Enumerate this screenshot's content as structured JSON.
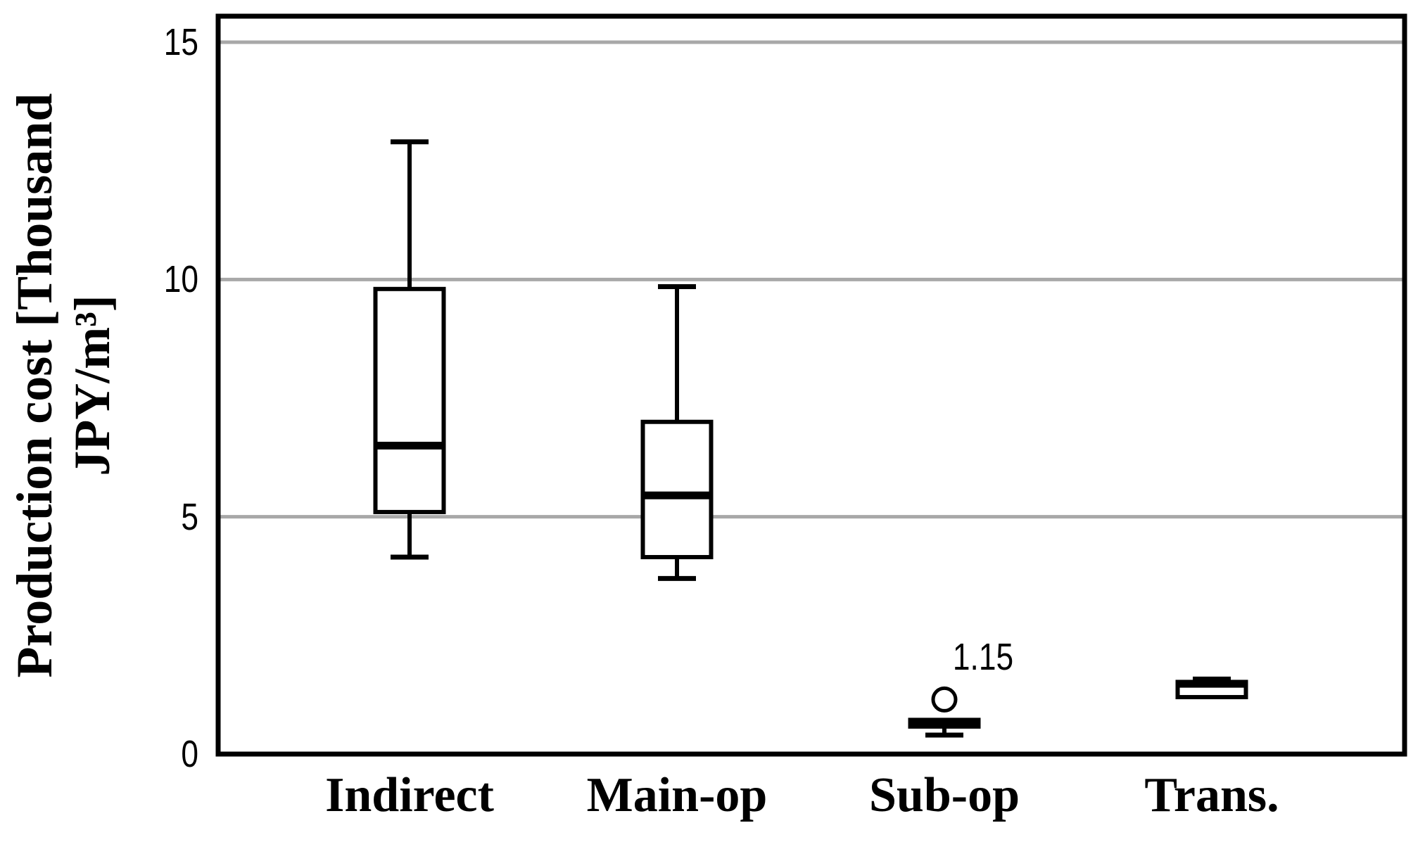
{
  "chart_data": {
    "type": "box",
    "title": "",
    "xlabel": "",
    "ylabel": "Production cost [Thousand JPY/m³]",
    "ylabel_lines": [
      "Production cost [Thousand",
      "JPY/m³]"
    ],
    "categories": [
      "Indirect",
      "Main-op",
      "Sub-op",
      "Trans."
    ],
    "yticks": [
      0,
      5,
      10,
      15
    ],
    "ylim": [
      0,
      15.55
    ],
    "grid": {
      "horizontal_gridlines_at": [
        5,
        10,
        15
      ]
    },
    "legend": "none",
    "series": [
      {
        "category": "Indirect",
        "whisker_low": 4.15,
        "q1": 5.1,
        "median": 6.5,
        "q3": 9.8,
        "whisker_high": 12.9,
        "outliers": []
      },
      {
        "category": "Main-op",
        "whisker_low": 3.7,
        "q1": 4.15,
        "median": 5.45,
        "q3": 7.0,
        "whisker_high": 9.85,
        "outliers": []
      },
      {
        "category": "Sub-op",
        "whisker_low": 0.4,
        "q1": 0.58,
        "median": 0.65,
        "q3": 0.72,
        "whisker_high": 0.72,
        "outliers": [
          {
            "value": 1.15,
            "label": "1.15"
          }
        ]
      },
      {
        "category": "Trans.",
        "whisker_low": 1.2,
        "q1": 1.2,
        "median": 1.48,
        "q3": 1.52,
        "whisker_high": 1.58,
        "outliers": []
      }
    ]
  },
  "colors": {
    "line": "#000000",
    "gridline": "#a8a8a8",
    "box_fill": "#ffffff",
    "background": "#ffffff"
  }
}
